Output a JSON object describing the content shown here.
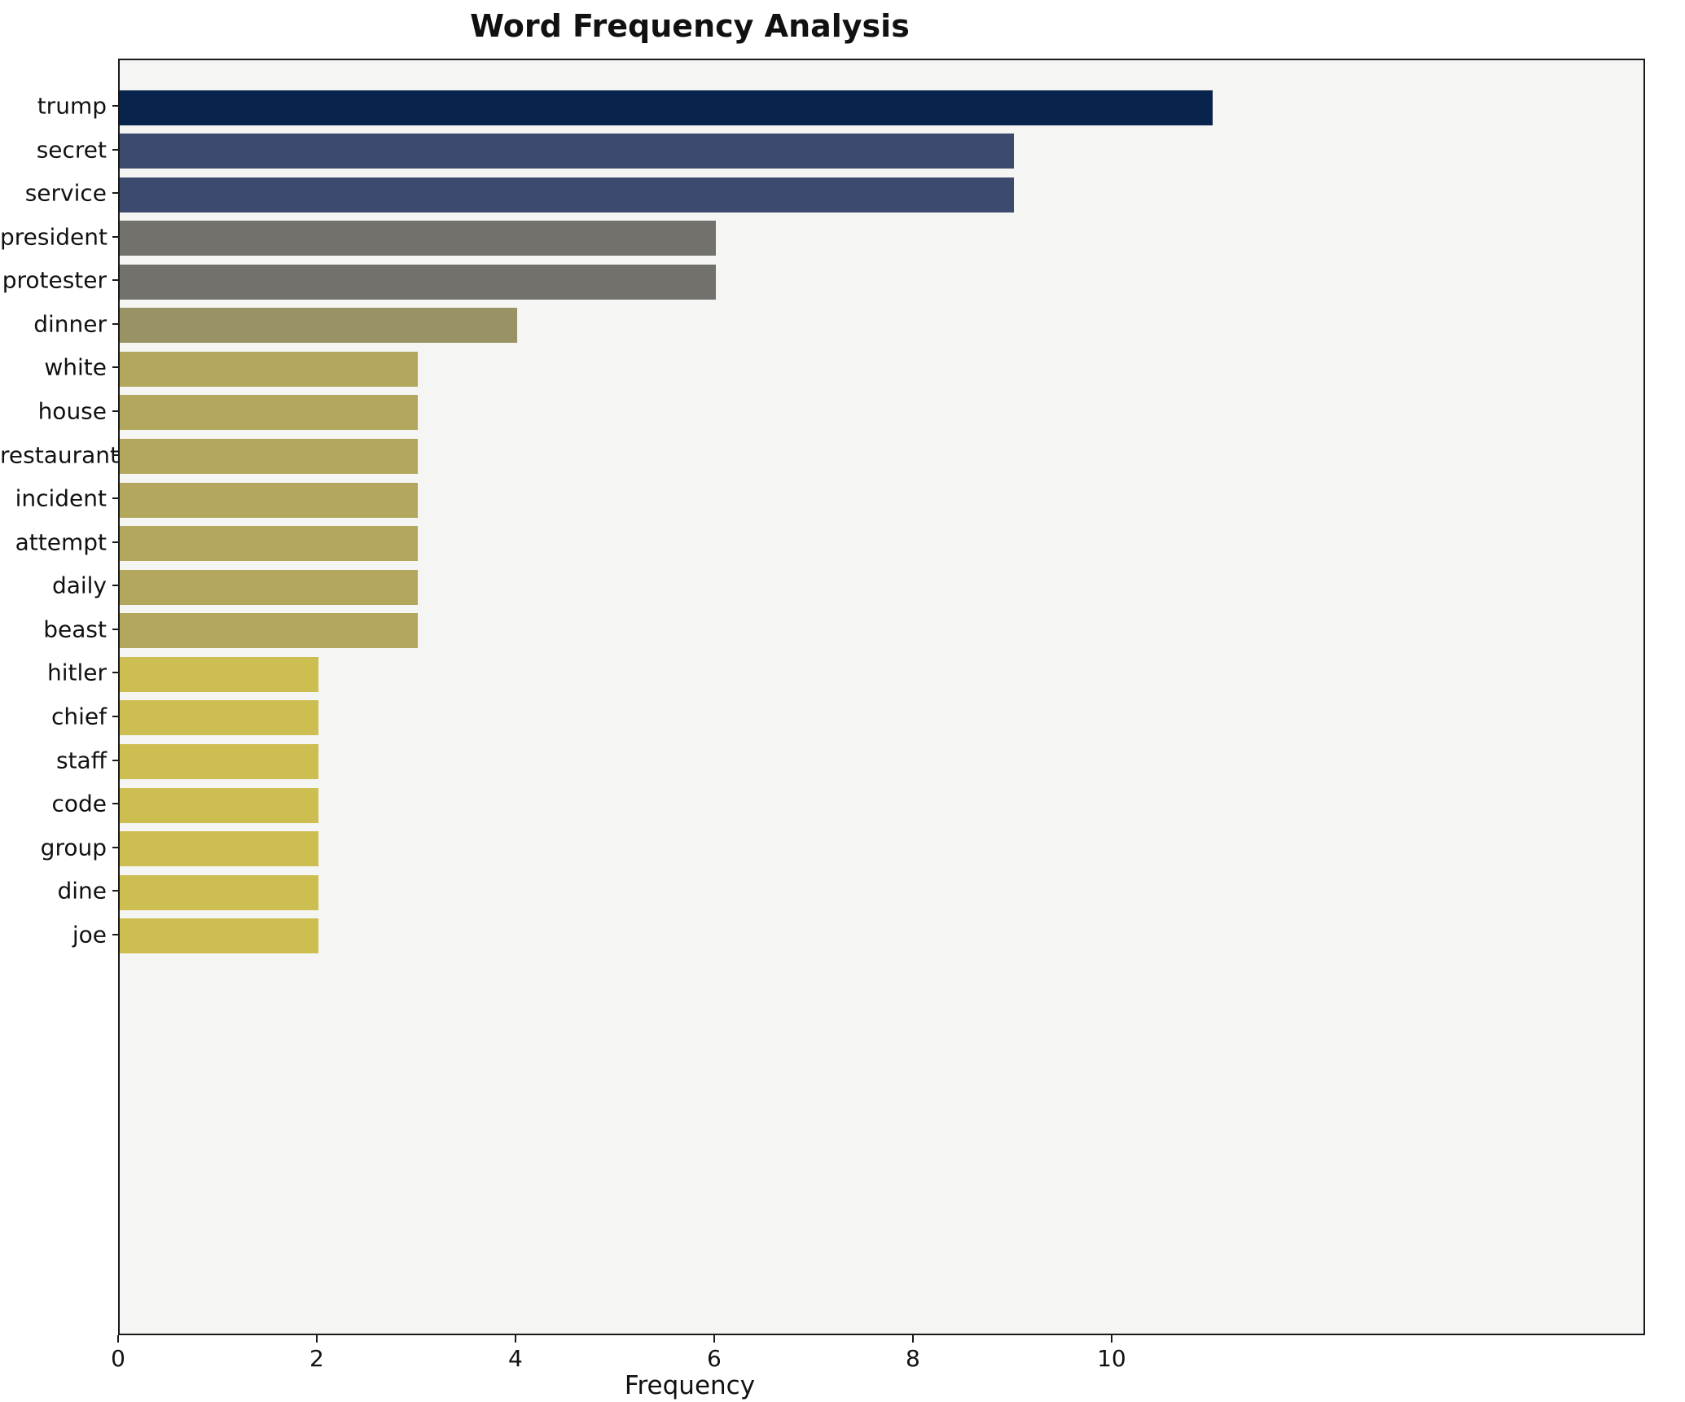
{
  "chart_data": {
    "type": "bar",
    "orientation": "horizontal",
    "title": "Word Frequency Analysis",
    "xlabel": "Frequency",
    "ylabel": "",
    "categories": [
      "trump",
      "secret",
      "service",
      "president",
      "protester",
      "dinner",
      "white",
      "house",
      "restaurant",
      "incident",
      "attempt",
      "daily",
      "beast",
      "hitler",
      "chief",
      "staff",
      "code",
      "group",
      "dine",
      "joe"
    ],
    "values": [
      11,
      9,
      9,
      6,
      6,
      4,
      3,
      3,
      3,
      3,
      3,
      3,
      3,
      2,
      2,
      2,
      2,
      2,
      2,
      2
    ],
    "bar_colors": [
      "#08244c",
      "#3c4a6d",
      "#3c4a6d",
      "#72716c",
      "#72716c",
      "#989264",
      "#b2a75c",
      "#b2a75c",
      "#b2a75c",
      "#b2a75c",
      "#b2a75c",
      "#b2a75c",
      "#b2a75c",
      "#ccbe50",
      "#ccbe50",
      "#ccbe50",
      "#ccbe50",
      "#ccbe50",
      "#ccbe50",
      "#ccbe50"
    ],
    "xticks": [
      0,
      2,
      4,
      6,
      8,
      10
    ],
    "xlim": [
      0,
      15.37
    ],
    "grid": false,
    "legend": null,
    "plot_bg": "#f5f5f3",
    "frame_color": "#1a1a1a",
    "text_color": "#111111"
  }
}
